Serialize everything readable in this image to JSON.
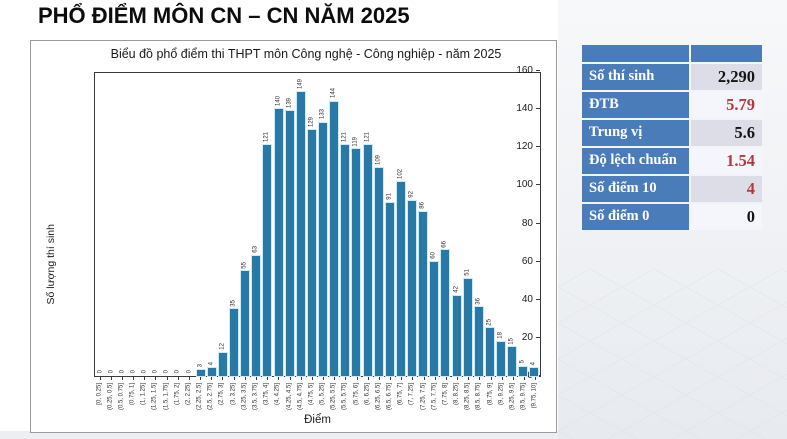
{
  "page": {
    "title": "PHỔ ĐIỂM MÔN CN – CN NĂM 2025"
  },
  "chart_data": {
    "type": "bar",
    "title": "Biểu đồ phổ điểm thi THPT môn Công nghệ - Công nghiệp - năm 2025",
    "xlabel": "Điểm",
    "ylabel": "Số lượng thí sinh",
    "ylim": [
      0,
      160
    ],
    "yticks": [
      0,
      20,
      40,
      60,
      80,
      100,
      120,
      140,
      160
    ],
    "grid": false,
    "legend": "none",
    "bar_color": "#2879a6",
    "bar_edge_color": "#cdeaf6",
    "categories": [
      "[0, 0.25]",
      "(0.25, 0.5]",
      "(0.5, 0.75]",
      "(0.75, 1]",
      "(1, 1.25]",
      "(1.25, 1.5]",
      "(1.5, 1.75]",
      "(1.75, 2]",
      "(2, 2.25]",
      "(2.25, 2.5]",
      "(2.5, 2.75]",
      "(2.75, 3]",
      "(3, 3.25]",
      "(3.25, 3.5]",
      "(3.5, 3.75]",
      "(3.75, 4]",
      "(4, 4.25]",
      "(4.25, 4.5]",
      "(4.5, 4.75]",
      "(4.75, 5]",
      "(5, 5.25]",
      "(5.25, 5.5]",
      "(5.5, 5.75]",
      "(5.75, 6]",
      "(6, 6.25]",
      "(6.25, 6.5]",
      "(6.5, 6.75]",
      "(6.75, 7]",
      "(7, 7.25]",
      "(7.25, 7.5]",
      "(7.5, 7.75]",
      "(7.75, 8]",
      "(8, 8.25]",
      "(8.25, 8.5]",
      "(8.5, 8.75]",
      "(8.75, 9]",
      "(9, 9.25]",
      "(9.25, 9.5]",
      "(9.5, 9.75]",
      "(9.75, 10]"
    ],
    "values": [
      0,
      0,
      0,
      0,
      0,
      0,
      0,
      0,
      0,
      3,
      4,
      12,
      35,
      55,
      63,
      121,
      140,
      139,
      149,
      129,
      133,
      144,
      121,
      119,
      121,
      109,
      91,
      102,
      92,
      86,
      60,
      66,
      42,
      51,
      36,
      25,
      18,
      15,
      5,
      4
    ]
  },
  "stats_table": {
    "header_color": "#4a7cba",
    "red_value_color": "#b03b3e",
    "rows": [
      {
        "label": "Số thí sinh",
        "value": "2,290",
        "tone": "dark"
      },
      {
        "label": "ĐTB",
        "value": "5.79",
        "tone": "red"
      },
      {
        "label": "Trung vị",
        "value": "5.6",
        "tone": "dark"
      },
      {
        "label": "Độ lệch chuẩn",
        "value": "1.54",
        "tone": "red"
      },
      {
        "label": "Số điểm 10",
        "value": "4",
        "tone": "red"
      },
      {
        "label": "Số điểm 0",
        "value": "0",
        "tone": "dark"
      }
    ]
  }
}
